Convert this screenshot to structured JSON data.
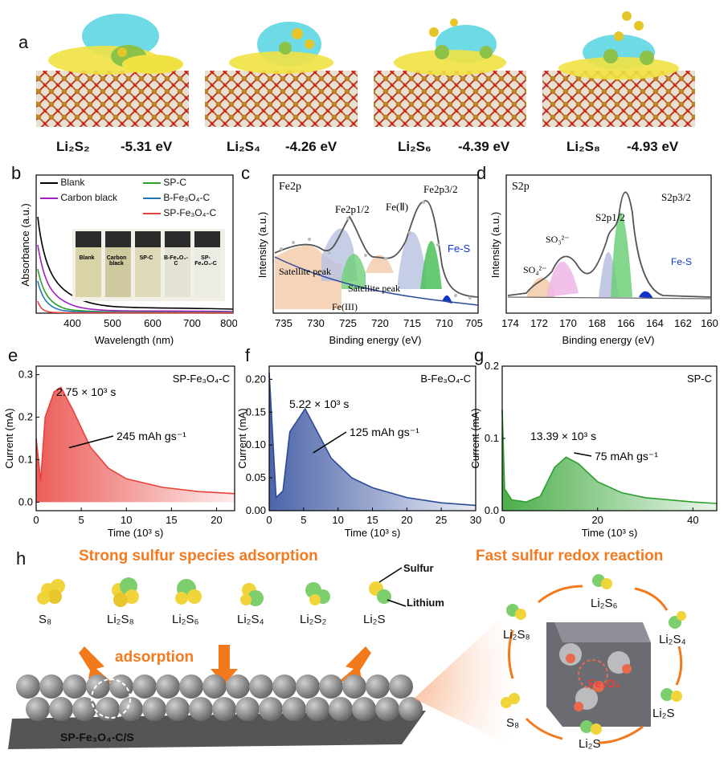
{
  "panel_a": {
    "letter": "a",
    "structures": [
      {
        "species": "Li₂S₂",
        "energy": "-5.31 eV"
      },
      {
        "species": "Li₂S₄",
        "energy": "-4.26 eV"
      },
      {
        "species": "Li₂S₆",
        "energy": "-4.39 eV"
      },
      {
        "species": "Li₂S₈",
        "energy": "-4.93 eV"
      }
    ]
  },
  "panel_b": {
    "letter": "b",
    "xlabel": "Wavelength (nm)",
    "ylabel": "Absorbance (a.u.)",
    "xticks": [
      "400",
      "500",
      "600",
      "700",
      "800"
    ],
    "legend": [
      {
        "name": "Blank",
        "color": "#000000"
      },
      {
        "name": "Carbon black",
        "color": "#a020c0"
      },
      {
        "name": "SP-C",
        "color": "#2ca02c"
      },
      {
        "name": "B-Fe₃O₄-C",
        "color": "#1f77b4"
      },
      {
        "name": "SP-Fe₃O₄-C",
        "color": "#e8413c"
      }
    ],
    "vials": [
      "Blank",
      "Carbon black",
      "SP-C",
      "B-Fe₃O₄-C",
      "SP-Fe₃O₄-C"
    ]
  },
  "panel_c": {
    "letter": "c",
    "title": "Fe2p",
    "xlabel": "Binding energy (eV)",
    "ylabel": "Intensity (a.u.)",
    "xticks": [
      "735",
      "730",
      "725",
      "720",
      "715",
      "710",
      "705"
    ],
    "annotations": [
      "Fe2p1/2",
      "Fe(Ⅱ)",
      "Fe2p3/2",
      "Fe-S",
      "Satellite peak",
      "Satellite peak",
      "Fe(III)"
    ]
  },
  "panel_d": {
    "letter": "d",
    "title": "S2p",
    "xlabel": "Binding energy (eV)",
    "ylabel": "Intensity (a.u.)",
    "xticks": [
      "174",
      "172",
      "170",
      "168",
      "166",
      "164",
      "162",
      "160"
    ],
    "annotations": [
      "SO₄²⁻",
      "SO₃²⁻",
      "S2p1/2",
      "S2p3/2",
      "Fe-S"
    ]
  },
  "panel_e": {
    "letter": "e",
    "sample": "SP-Fe₃O₄-C",
    "time": "2.75 × 10³ s",
    "capacity": "245 mAh gs⁻¹",
    "xlabel": "Time (10³ s)",
    "ylabel": "Current (mA)",
    "xticks": [
      "0",
      "5",
      "10",
      "15",
      "20"
    ],
    "yticks": [
      "0.0",
      "0.1",
      "0.2",
      "0.3"
    ],
    "color": "#e8413c"
  },
  "panel_f": {
    "letter": "f",
    "sample": "B-Fe₃O₄-C",
    "time": "5.22 × 10³ s",
    "capacity": "125 mAh gs⁻¹",
    "xlabel": "Time (10³ s)",
    "ylabel": "Current (mA)",
    "xticks": [
      "0",
      "5",
      "10",
      "15",
      "20",
      "25",
      "30"
    ],
    "yticks": [
      "0.00",
      "0.05",
      "0.10",
      "0.15",
      "0.20"
    ],
    "color": "#2d4a9a"
  },
  "panel_g": {
    "letter": "g",
    "sample": "SP-C",
    "time": "13.39 × 10³ s",
    "capacity": "75 mAh gs⁻¹",
    "xlabel": "Time (10³ s)",
    "ylabel": "Current (mA)",
    "xticks": [
      "0",
      "20",
      "40"
    ],
    "yticks": [
      "0.0",
      "0.1",
      "0.2"
    ],
    "color": "#2ca02c"
  },
  "panel_h": {
    "letter": "h",
    "left_title": "Strong sulfur species adsorption",
    "right_title": "Fast sulfur redox reaction",
    "species": [
      "S₈",
      "Li₂S₈",
      "Li₂S₆",
      "Li₂S₄",
      "Li₂S₂",
      "Li₂S"
    ],
    "legend_sulfur": "Sulfur",
    "legend_lithium": "Lithium",
    "adsorption": "adsorption",
    "substrate_label": "SP-Fe₃O₄-C/S",
    "catalyst": "Fe₃O₄",
    "cycle": [
      "Li₂S₆",
      "Li₂S₄",
      "Li₂S",
      "Li₂S",
      "S₈",
      "Li₂S₈"
    ]
  },
  "chart_data": [
    {
      "type": "line",
      "title": "",
      "xlabel": "Wavelength (nm)",
      "ylabel": "Absorbance (a.u.)",
      "xlim": [
        310,
        800
      ],
      "series": [
        {
          "name": "Blank",
          "x": [
            320,
            350,
            400,
            500,
            600,
            800
          ],
          "y": [
            0.95,
            0.45,
            0.2,
            0.1,
            0.08,
            0.06
          ]
        },
        {
          "name": "Carbon black",
          "x": [
            320,
            350,
            400,
            500,
            600,
            800
          ],
          "y": [
            0.8,
            0.3,
            0.12,
            0.05,
            0.03,
            0.02
          ]
        },
        {
          "name": "SP-C",
          "x": [
            320,
            350,
            400,
            500,
            600,
            800
          ],
          "y": [
            0.55,
            0.15,
            0.05,
            0.02,
            0.01,
            0.01
          ]
        },
        {
          "name": "B-Fe₃O₄-C",
          "x": [
            320,
            350,
            400,
            500,
            600,
            800
          ],
          "y": [
            0.45,
            0.1,
            0.03,
            0.01,
            0.01,
            0.01
          ]
        },
        {
          "name": "SP-Fe₃O₄-C",
          "x": [
            320,
            350,
            400,
            500,
            600,
            800
          ],
          "y": [
            0.2,
            0.03,
            0.01,
            0.0,
            0.0,
            0.0
          ]
        }
      ]
    },
    {
      "type": "line",
      "title": "Fe2p",
      "xlabel": "Binding energy (eV)",
      "ylabel": "Intensity (a.u.)",
      "xlim": [
        738,
        705
      ],
      "series": [
        {
          "name": "",
          "x": [
            735,
            732,
            729,
            727,
            725,
            723,
            720,
            717,
            715,
            713,
            711,
            709,
            707,
            705
          ],
          "y": [
            0.3,
            0.4,
            0.5,
            0.8,
            0.7,
            0.45,
            0.5,
            0.55,
            0.75,
            0.7,
            1.0,
            0.35,
            0.15,
            0.1
          ]
        }
      ]
    },
    {
      "type": "line",
      "title": "S2p",
      "xlabel": "Binding energy (eV)",
      "ylabel": "Intensity (a.u.)",
      "xlim": [
        174,
        160
      ],
      "series": [
        {
          "name": "",
          "x": [
            174,
            171,
            170,
            169,
            168.5,
            167,
            166,
            165.3,
            164.5,
            164.1,
            163.5,
            162,
            160
          ],
          "y": [
            0.05,
            0.05,
            0.2,
            0.4,
            0.5,
            0.2,
            0.35,
            0.55,
            0.5,
            1.0,
            0.3,
            0.05,
            0.03
          ]
        }
      ]
    },
    {
      "type": "area",
      "xlabel": "Time (10³ s)",
      "ylabel": "Current (mA)",
      "xlim": [
        0,
        22
      ],
      "ylim": [
        -0.02,
        0.32
      ],
      "series": [
        {
          "name": "SP-Fe₃O₄-C",
          "x": [
            0,
            0.5,
            1,
            2,
            2.75,
            4,
            6,
            8,
            10,
            14,
            18,
            22
          ],
          "y": [
            0.15,
            0.05,
            0.2,
            0.26,
            0.27,
            0.22,
            0.13,
            0.08,
            0.055,
            0.035,
            0.025,
            0.02
          ]
        }
      ]
    },
    {
      "type": "area",
      "xlabel": "Time (10³ s)",
      "ylabel": "Current (mA)",
      "xlim": [
        0,
        30
      ],
      "ylim": [
        0,
        0.22
      ],
      "series": [
        {
          "name": "B-Fe₃O₄-C",
          "x": [
            0,
            1,
            2,
            3,
            5.22,
            7,
            9,
            12,
            15,
            20,
            25,
            30
          ],
          "y": [
            0.21,
            0.02,
            0.03,
            0.12,
            0.155,
            0.12,
            0.08,
            0.05,
            0.035,
            0.02,
            0.012,
            0.008
          ]
        }
      ]
    },
    {
      "type": "area",
      "xlabel": "Time (10³ s)",
      "ylabel": "Current (mA)",
      "xlim": [
        0,
        45
      ],
      "ylim": [
        0,
        0.2
      ],
      "series": [
        {
          "name": "SP-C",
          "x": [
            0,
            0.5,
            2,
            5,
            8,
            11,
            13.39,
            16,
            20,
            25,
            30,
            40,
            45
          ],
          "y": [
            0.14,
            0.03,
            0.015,
            0.012,
            0.02,
            0.06,
            0.074,
            0.065,
            0.04,
            0.025,
            0.018,
            0.012,
            0.01
          ]
        }
      ]
    }
  ]
}
